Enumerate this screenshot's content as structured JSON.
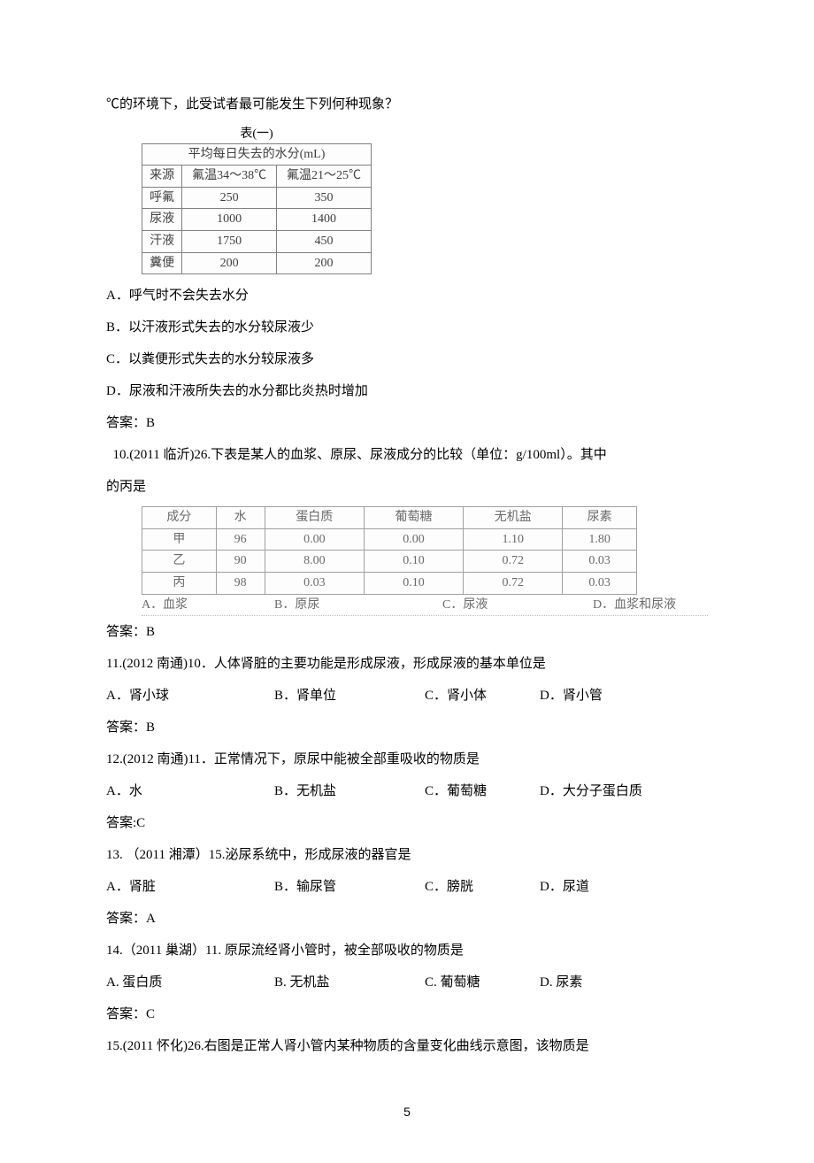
{
  "intro_line": "℃的环境下，此受试者最可能发生下列何种现象？",
  "table1": {
    "caption": "表(一)",
    "header_merged": "平均每日失去的水分(mL)",
    "columns": [
      "来源",
      "氟温34～38℃",
      "氟温21～25℃"
    ],
    "rows": [
      [
        "呼氟",
        "250",
        "350"
      ],
      [
        "尿液",
        "1000",
        "1400"
      ],
      [
        "汗液",
        "1750",
        "450"
      ],
      [
        "糞便",
        "200",
        "200"
      ]
    ],
    "border_color": "#808080",
    "text_color": "#404040",
    "fontsize": 14
  },
  "q_pre_options": {
    "A": "A．呼气时不会失去水分",
    "B": "B．以汗液形式失去的水分较尿液少",
    "C": "C．以粪便形式失去的水分较尿液多",
    "D": "D．尿液和汗液所失去的水分都比炎热时增加",
    "answer": "答案：B"
  },
  "q10": {
    "stem1": "  10.(2011 临沂)26.下表是某人的血浆、原尿、尿液成分的比较（单位：g/100ml）。其中",
    "stem2": "的丙是",
    "answer": "答案：B"
  },
  "table2": {
    "columns": [
      "成分",
      "水",
      "蛋白质",
      "葡萄糖",
      "无机盐",
      "尿素"
    ],
    "rows": [
      [
        "甲",
        "96",
        "0.00",
        "0.00",
        "1.10",
        "1.80"
      ],
      [
        "乙",
        "90",
        "8.00",
        "0.10",
        "0.72",
        "0.03"
      ],
      [
        "丙",
        "98",
        "0.03",
        "0.10",
        "0.72",
        "0.03"
      ]
    ],
    "options": {
      "A": "A．血浆",
      "B": "B．原尿",
      "C": "C．尿液",
      "D": "D．血浆和尿液"
    },
    "border_color": "#a0a0a0",
    "text_color": "#6a6a6a",
    "fontsize": 14
  },
  "q11": {
    "stem": "11.(2012 南通)10．人体肾脏的主要功能是形成尿液，形成尿液的基本单位是",
    "A": "A．肾小球",
    "B": "B．肾单位",
    "C": "C．肾小体",
    "D": "D．肾小管",
    "answer": "答案：B"
  },
  "q12": {
    "stem": "12.(2012 南通)11．正常情况下，原尿中能被全部重吸收的物质是",
    "A": "A．水",
    "B": "B．无机盐",
    "C": "C．葡萄糖",
    "D": "D．大分子蛋白质",
    "answer": "答案:C"
  },
  "q13": {
    "stem": "13. （2011 湘潭）15.泌尿系统中，形成尿液的器官是",
    "A": "A．肾脏",
    "B": "B．输尿管",
    "C": "C．膀胱",
    "D": "D．尿道",
    "answer": "答案：A"
  },
  "q14": {
    "stem": "14.（2011 巢湖）11. 原尿流经肾小管时，被全部吸收的物质是",
    "A": "A. 蛋白质",
    "B": "B. 无机盐",
    "C": "C. 葡萄糖",
    "D": "D. 尿素",
    "answer": "答案：C"
  },
  "q15": {
    "stem": "15.(2011 怀化)26.右图是正常人肾小管内某种物质的含量变化曲线示意图，该物质是"
  },
  "page_number": "5"
}
